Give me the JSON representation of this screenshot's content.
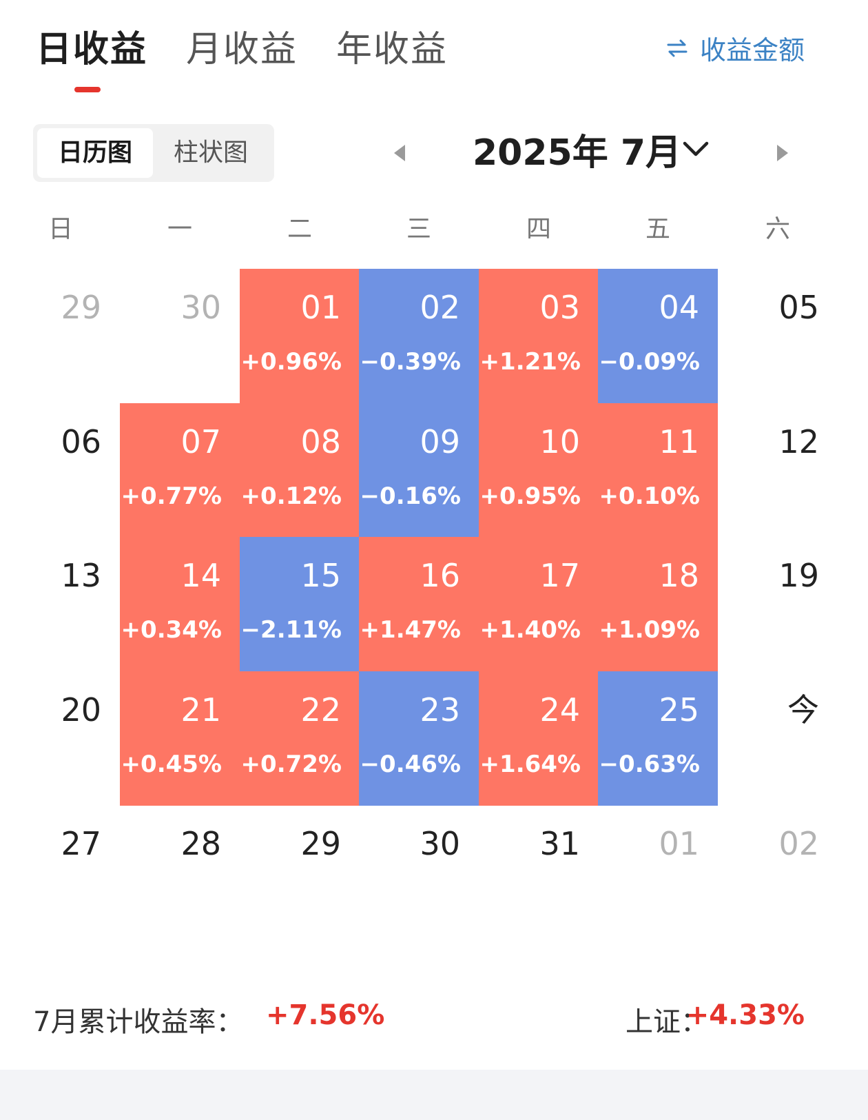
{
  "tabs": [
    {
      "label": "日收益",
      "active": true
    },
    {
      "label": "月收益",
      "active": false
    },
    {
      "label": "年收益",
      "active": false
    }
  ],
  "toggle": {
    "icon": "swap-icon",
    "label": "收益金额"
  },
  "view_switch": [
    {
      "label": "日历图",
      "active": true
    },
    {
      "label": "柱状图",
      "active": false
    }
  ],
  "month_nav": {
    "title": "2025年 7月",
    "prev_icon": "triangle-left-icon",
    "next_icon": "triangle-right-icon",
    "dropdown_icon": "chevron-down-icon"
  },
  "weekdays": [
    "日",
    "一",
    "二",
    "三",
    "四",
    "五",
    "六"
  ],
  "colors": {
    "up": "#fe7664",
    "down": "#6f92e3",
    "accent": "#e5352d",
    "link": "#3b82c4"
  },
  "calendar": [
    [
      {
        "day": "29",
        "pct": "",
        "state": "muted"
      },
      {
        "day": "30",
        "pct": "",
        "state": "muted"
      },
      {
        "day": "01",
        "pct": "+0.96%",
        "state": "up"
      },
      {
        "day": "02",
        "pct": "−0.39%",
        "state": "down"
      },
      {
        "day": "03",
        "pct": "+1.21%",
        "state": "up"
      },
      {
        "day": "04",
        "pct": "−0.09%",
        "state": "down"
      },
      {
        "day": "05",
        "pct": "",
        "state": "plain"
      }
    ],
    [
      {
        "day": "06",
        "pct": "",
        "state": "plain"
      },
      {
        "day": "07",
        "pct": "+0.77%",
        "state": "up"
      },
      {
        "day": "08",
        "pct": "+0.12%",
        "state": "up"
      },
      {
        "day": "09",
        "pct": "−0.16%",
        "state": "down"
      },
      {
        "day": "10",
        "pct": "+0.95%",
        "state": "up"
      },
      {
        "day": "11",
        "pct": "+0.10%",
        "state": "up"
      },
      {
        "day": "12",
        "pct": "",
        "state": "plain"
      }
    ],
    [
      {
        "day": "13",
        "pct": "",
        "state": "plain"
      },
      {
        "day": "14",
        "pct": "+0.34%",
        "state": "up"
      },
      {
        "day": "15",
        "pct": "−2.11%",
        "state": "down"
      },
      {
        "day": "16",
        "pct": "+1.47%",
        "state": "up"
      },
      {
        "day": "17",
        "pct": "+1.40%",
        "state": "up"
      },
      {
        "day": "18",
        "pct": "+1.09%",
        "state": "up"
      },
      {
        "day": "19",
        "pct": "",
        "state": "plain"
      }
    ],
    [
      {
        "day": "20",
        "pct": "",
        "state": "plain"
      },
      {
        "day": "21",
        "pct": "+0.45%",
        "state": "up"
      },
      {
        "day": "22",
        "pct": "+0.72%",
        "state": "up"
      },
      {
        "day": "23",
        "pct": "−0.46%",
        "state": "down"
      },
      {
        "day": "24",
        "pct": "+1.64%",
        "state": "up"
      },
      {
        "day": "25",
        "pct": "−0.63%",
        "state": "down"
      },
      {
        "day": "今",
        "pct": "",
        "state": "plain"
      }
    ],
    [
      {
        "day": "27",
        "pct": "",
        "state": "plain"
      },
      {
        "day": "28",
        "pct": "",
        "state": "plain"
      },
      {
        "day": "29",
        "pct": "",
        "state": "plain"
      },
      {
        "day": "30",
        "pct": "",
        "state": "plain"
      },
      {
        "day": "31",
        "pct": "",
        "state": "plain"
      },
      {
        "day": "01",
        "pct": "",
        "state": "muted"
      },
      {
        "day": "02",
        "pct": "",
        "state": "muted"
      }
    ]
  ],
  "summary": {
    "month_label": "7月累计收益率：",
    "month_value": "+7.56%",
    "index_label": "上证：",
    "index_value": "+4.33%"
  }
}
